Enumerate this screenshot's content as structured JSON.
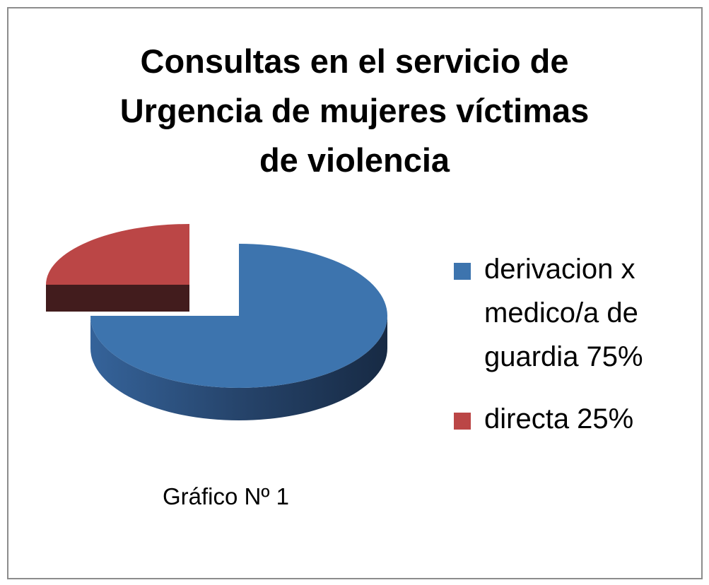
{
  "chart_data": {
    "type": "pie",
    "title_lines": [
      "Consultas en el servicio de",
      "Urgencia de mujeres víctimas",
      "de violencia"
    ],
    "categories": [
      "derivacion x medico/a de guardia 75%",
      "directa 25%"
    ],
    "values": [
      75,
      25
    ],
    "unit": "%",
    "colors": [
      "#3d74ae",
      "#bb4646"
    ],
    "style": "3d-exploded",
    "legend_position": "right",
    "caption": "Gráfico Nº 1"
  }
}
